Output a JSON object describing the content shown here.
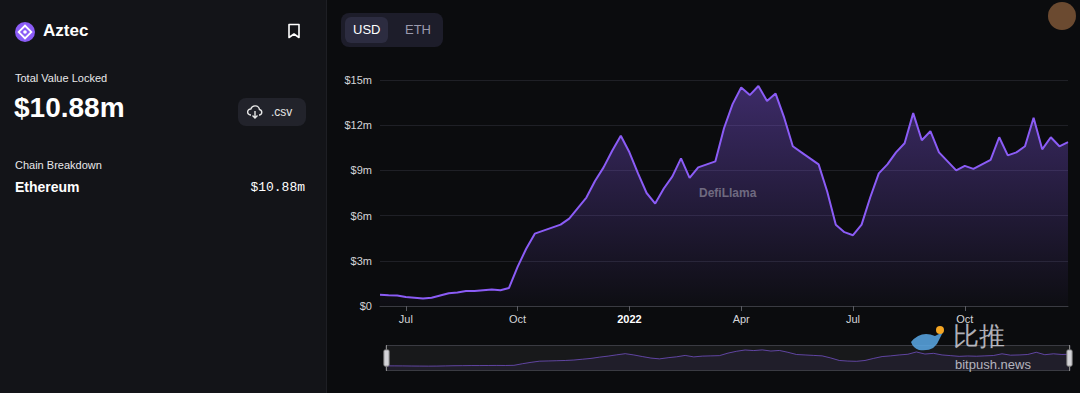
{
  "page": {
    "title": "Aztec",
    "tvl_label": "Total Value Locked",
    "tvl": "$10.88m",
    "csv_button": ".csv",
    "chain_breakdown_label": "Chain Breakdown",
    "chains": [
      {
        "name": "Ethereum",
        "value": "$10.88m"
      }
    ],
    "currency_toggle": [
      "USD",
      "ETH"
    ],
    "active_currency": "USD",
    "watermarks": [
      "DefiLlama",
      "比推",
      "bitpush.news"
    ]
  },
  "chart_data": {
    "type": "area",
    "color": "#8b5cf6",
    "grid": true,
    "categories": [
      null,
      null,
      null,
      "Jul",
      null,
      null,
      null,
      null,
      null,
      null,
      null,
      null,
      null,
      null,
      null,
      null,
      "Oct",
      null,
      null,
      null,
      null,
      null,
      null,
      null,
      null,
      null,
      null,
      null,
      null,
      "2022",
      null,
      null,
      null,
      null,
      null,
      null,
      null,
      null,
      null,
      null,
      null,
      null,
      "Apr",
      null,
      null,
      null,
      null,
      null,
      null,
      null,
      null,
      null,
      null,
      null,
      null,
      "Jul",
      null,
      null,
      null,
      null,
      null,
      null,
      null,
      null,
      null,
      null,
      null,
      null,
      "Oct",
      null,
      null,
      null,
      null,
      null,
      null,
      null,
      null,
      null,
      null,
      null,
      null
    ],
    "values": [
      0.75,
      0.72,
      0.7,
      0.6,
      0.55,
      0.5,
      0.55,
      0.7,
      0.85,
      0.9,
      1.0,
      1.0,
      1.05,
      1.1,
      1.05,
      1.2,
      2.6,
      3.8,
      4.8,
      5.0,
      5.2,
      5.4,
      5.8,
      6.5,
      7.2,
      8.3,
      9.2,
      10.3,
      11.3,
      10.2,
      8.8,
      7.5,
      6.8,
      7.8,
      8.6,
      9.8,
      8.5,
      9.2,
      9.4,
      9.6,
      11.8,
      13.4,
      14.5,
      14.0,
      14.6,
      13.6,
      14.1,
      12.5,
      10.6,
      10.2,
      9.8,
      9.4,
      7.6,
      5.4,
      4.9,
      4.7,
      5.4,
      7.2,
      8.8,
      9.4,
      10.2,
      10.8,
      12.8,
      11.0,
      11.6,
      10.2,
      9.6,
      9.0,
      9.3,
      9.1,
      9.4,
      9.7,
      11.2,
      10.0,
      10.2,
      10.6,
      12.5,
      10.4,
      11.2,
      10.6,
      10.88
    ],
    "ylim": [
      0,
      15
    ],
    "yticks": [
      {
        "value": 0,
        "label": "$0"
      },
      {
        "value": 3,
        "label": "$3m"
      },
      {
        "value": 6,
        "label": "$6m"
      },
      {
        "value": 9,
        "label": "$9m"
      },
      {
        "value": 12,
        "label": "$12m"
      },
      {
        "value": 15,
        "label": "$15m"
      }
    ]
  }
}
